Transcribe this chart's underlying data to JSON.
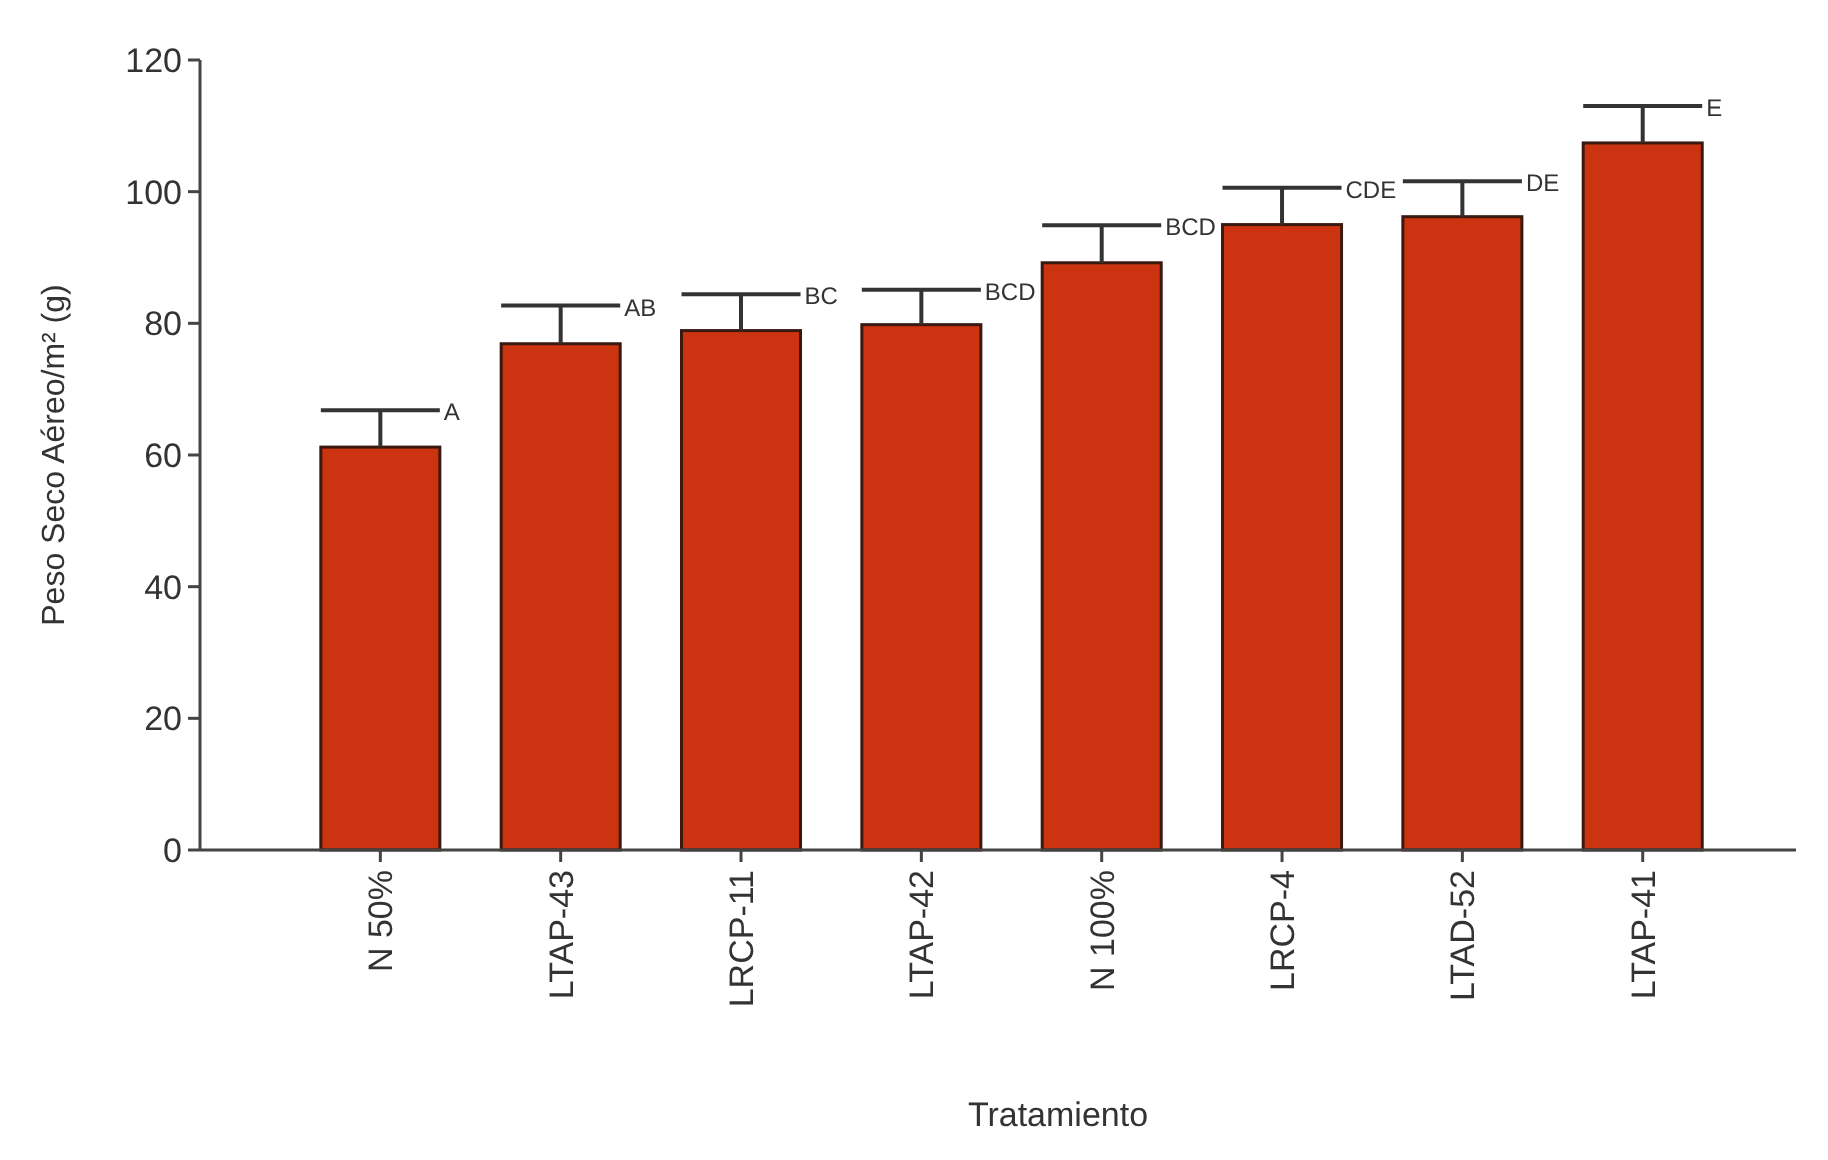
{
  "chart_data": {
    "type": "bar",
    "xlabel": "Tratamiento",
    "ylabel": "Peso Seco Aéreo/m² (g)",
    "categories": [
      "N 50%",
      "LTAP-43",
      "LRCP-11",
      "LTAP-42",
      "N 100%",
      "LRCP-4",
      "LTAD-52",
      "LTAP-41"
    ],
    "values": [
      61.2,
      76.9,
      78.9,
      79.8,
      89.2,
      95.0,
      96.2,
      107.4
    ],
    "errors": [
      [
        61.2,
        66.8
      ],
      [
        76.9,
        82.7
      ],
      [
        78.9,
        84.4
      ],
      [
        79.8,
        85.1
      ],
      [
        89.2,
        94.9
      ],
      [
        95.0,
        100.6
      ],
      [
        96.2,
        101.6
      ],
      [
        107.4,
        113.0
      ]
    ],
    "color": "#cc3311",
    "ylim": [
      0,
      120
    ],
    "yticks": [
      0,
      20,
      40,
      60,
      80,
      100,
      120
    ],
    "grid": false,
    "annotations": [
      "A",
      "AB",
      "BC",
      "BCD",
      "BCD",
      "CDE",
      "DE",
      "E"
    ]
  }
}
